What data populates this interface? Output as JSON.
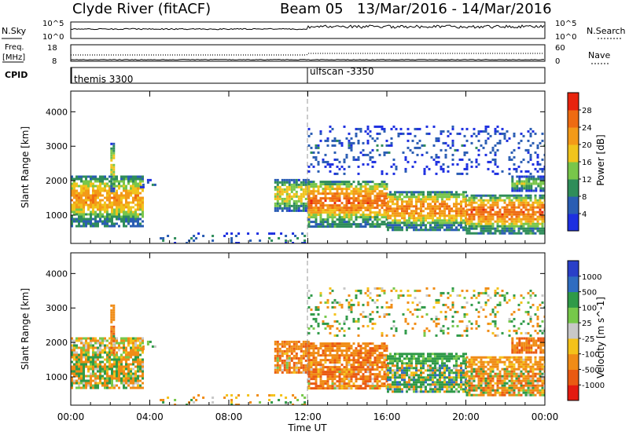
{
  "header": {
    "station": "Clyde River (fitACF)",
    "beam": "Beam 05",
    "date_range": "13/Mar/2016 - 14/Mar/2016"
  },
  "noise_panel": {
    "left_label": "N.Sky",
    "right_label": "N.Search",
    "y_top_label": "10^5",
    "y_bottom_label": "10^0"
  },
  "freq_panel": {
    "left_label_1": "Freq.",
    "left_label_2": "[MHz]",
    "y_top_left": "18",
    "y_bottom_left": "8",
    "right_label": "Nave",
    "y_top_right": "60",
    "y_bottom_right": "0"
  },
  "cpid_panel": {
    "label": "CPID",
    "entries": [
      {
        "time_hours": 0,
        "text": "themis 3300"
      },
      {
        "time_hours": 12,
        "text": "ulfscan -3350"
      }
    ]
  },
  "x_axis": {
    "title": "Time UT",
    "tick_labels": [
      "00:00",
      "04:00",
      "08:00",
      "12:00",
      "16:00",
      "20:00",
      "00:00"
    ],
    "range_hours": [
      0,
      24
    ]
  },
  "power_panel": {
    "ylabel": "Slant Range [km]",
    "y_ticks": [
      "1000",
      "2000",
      "3000",
      "4000"
    ],
    "colorbar_label": "Power [dB]",
    "colorbar_ticks": [
      "4",
      "8",
      "12",
      "16",
      "20",
      "24",
      "28"
    ],
    "colorbar_colors": [
      "#1d2fe0",
      "#2a5db3",
      "#2f8d5a",
      "#78c64a",
      "#f0c41c",
      "#f39a18",
      "#ee6b12",
      "#e8240e"
    ]
  },
  "velocity_panel": {
    "ylabel": "Slant Range [km]",
    "y_ticks": [
      "1000",
      "2000",
      "3000",
      "4000"
    ],
    "colorbar_label": "Velocity [m s^-1]",
    "colorbar_ticks": [
      "1000",
      "500",
      "100",
      "25",
      "-25",
      "-100",
      "-500",
      "-1000"
    ],
    "colorbar_colors": [
      "#2a3fc8",
      "#2f6cc0",
      "#2f9a48",
      "#76c84a",
      "#c8c8c8",
      "#f4c21a",
      "#f08c16",
      "#ea5a12",
      "#e41a10"
    ]
  },
  "chart_data": {
    "type": "heatmap",
    "x_label": "Time UT",
    "x_range_hours": [
      0,
      24
    ],
    "y_label": "Slant Range [km]",
    "y_range_km": [
      180,
      4600
    ],
    "panels": [
      "Power [dB]",
      "Velocity [m s^-1]"
    ],
    "echo_regions": [
      {
        "t_start": 0.0,
        "t_end": 3.7,
        "r_low": 700,
        "r_high": 2150,
        "power_db": 22,
        "velocity": -50
      },
      {
        "t_start": 2.0,
        "t_end": 2.2,
        "r_low": 1700,
        "r_high": 3100,
        "power_db": 18,
        "velocity": -300
      },
      {
        "t_start": 3.5,
        "t_end": 4.3,
        "r_low": 1800,
        "r_high": 2050,
        "power_db": 6,
        "velocity": 50
      },
      {
        "t_start": 10.3,
        "t_end": 12.0,
        "r_low": 1100,
        "r_high": 2050,
        "power_db": 18,
        "velocity": -400
      },
      {
        "t_start": 12.0,
        "t_end": 16.0,
        "r_low": 700,
        "r_high": 2000,
        "power_db": 26,
        "velocity": -400
      },
      {
        "t_start": 16.0,
        "t_end": 20.0,
        "r_low": 600,
        "r_high": 1700,
        "power_db": 24,
        "velocity": 200
      },
      {
        "t_start": 20.0,
        "t_end": 24.0,
        "r_low": 500,
        "r_high": 1600,
        "power_db": 26,
        "velocity": -200
      },
      {
        "t_start": 22.3,
        "t_end": 24.0,
        "r_low": 1700,
        "r_high": 2150,
        "power_db": 14,
        "velocity": -500
      },
      {
        "t_start": 12.0,
        "t_end": 24.0,
        "r_low": 2200,
        "r_high": 3600,
        "power_db": 6,
        "velocity": 0
      },
      {
        "t_start": 4.5,
        "t_end": 12.0,
        "r_low": 180,
        "r_high": 500,
        "power_db": 8,
        "velocity": -100
      }
    ]
  }
}
